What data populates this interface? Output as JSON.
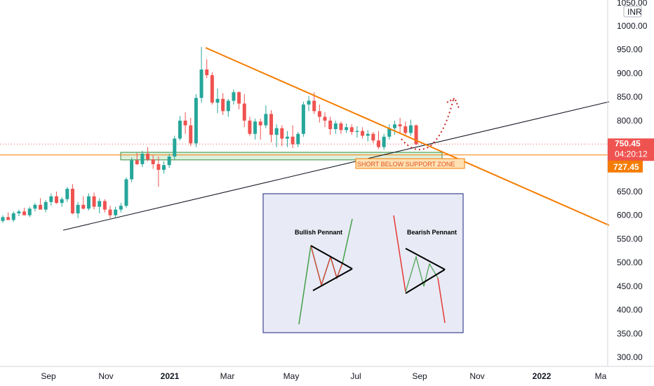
{
  "chart_data": {
    "type": "candlestick",
    "currency": "INR",
    "y_axis": {
      "top_partial_label": "1050.00",
      "ticks": [
        "1000.00",
        "950.00",
        "900.00",
        "850.00",
        "800.00",
        "750.00",
        "700.00",
        "650.00",
        "600.00",
        "550.00",
        "500.00",
        "450.00",
        "400.00",
        "350.00",
        "300.00"
      ],
      "tick_values": [
        1000,
        950,
        900,
        850,
        800,
        750,
        700,
        650,
        600,
        550,
        500,
        450,
        400,
        350,
        300
      ],
      "range": [
        292,
        1058
      ]
    },
    "x_axis": {
      "labels": [
        {
          "text": "Sep",
          "bold": false
        },
        {
          "text": "Nov",
          "bold": false
        },
        {
          "text": "2021",
          "bold": true
        },
        {
          "text": "Mar",
          "bold": false
        },
        {
          "text": "May",
          "bold": false
        },
        {
          "text": "Jul",
          "bold": false
        },
        {
          "text": "Sep",
          "bold": false
        },
        {
          "text": "Nov",
          "bold": false
        },
        {
          "text": "2022",
          "bold": true
        },
        {
          "text": "Ma",
          "bold": false
        }
      ]
    },
    "price_label": {
      "price": "750.45",
      "countdown": "04:20:12",
      "color": "#ef5350"
    },
    "level_label": {
      "price": "727.45",
      "color": "#f57c00"
    },
    "horizontal_level": 727.45,
    "annotation": "SHORT BELOW SUPPORT ZONE",
    "support_zone": [
      717,
      733
    ],
    "colors": {
      "up": "#26a69a",
      "down": "#ef5350",
      "trend": "#f57c00",
      "support": "#131722"
    },
    "candles": [
      [
        588,
        600,
        584,
        596
      ],
      [
        596,
        606,
        590,
        590
      ],
      [
        590,
        608,
        586,
        604
      ],
      [
        604,
        612,
        598,
        608
      ],
      [
        608,
        616,
        600,
        600
      ],
      [
        600,
        618,
        596,
        614
      ],
      [
        614,
        626,
        608,
        622
      ],
      [
        622,
        636,
        612,
        612
      ],
      [
        612,
        632,
        606,
        628
      ],
      [
        628,
        646,
        620,
        640
      ],
      [
        640,
        650,
        624,
        626
      ],
      [
        626,
        638,
        618,
        634
      ],
      [
        634,
        660,
        628,
        656
      ],
      [
        656,
        666,
        602,
        604
      ],
      [
        604,
        628,
        594,
        622
      ],
      [
        622,
        640,
        612,
        614
      ],
      [
        614,
        646,
        610,
        640
      ],
      [
        640,
        648,
        612,
        618
      ],
      [
        618,
        636,
        604,
        630
      ],
      [
        630,
        634,
        606,
        612
      ],
      [
        612,
        620,
        594,
        600
      ],
      [
        600,
        618,
        596,
        612
      ],
      [
        612,
        626,
        606,
        620
      ],
      [
        620,
        680,
        616,
        676
      ],
      [
        676,
        722,
        670,
        716
      ],
      [
        716,
        732,
        706,
        708
      ],
      [
        708,
        736,
        702,
        730
      ],
      [
        730,
        744,
        714,
        718
      ],
      [
        718,
        728,
        698,
        708
      ],
      [
        708,
        724,
        660,
        696
      ],
      [
        696,
        714,
        688,
        706
      ],
      [
        706,
        730,
        700,
        724
      ],
      [
        724,
        768,
        718,
        762
      ],
      [
        762,
        810,
        758,
        800
      ],
      [
        800,
        818,
        772,
        790
      ],
      [
        790,
        806,
        746,
        752
      ],
      [
        752,
        856,
        744,
        848
      ],
      [
        848,
        956,
        838,
        908
      ],
      [
        908,
        930,
        890,
        896
      ],
      [
        896,
        902,
        834,
        838
      ],
      [
        838,
        868,
        816,
        846
      ],
      [
        846,
        858,
        812,
        820
      ],
      [
        820,
        846,
        808,
        842
      ],
      [
        842,
        866,
        834,
        860
      ],
      [
        860,
        862,
        824,
        836
      ],
      [
        836,
        856,
        786,
        800
      ],
      [
        800,
        808,
        768,
        772
      ],
      [
        772,
        804,
        760,
        798
      ],
      [
        798,
        804,
        760,
        790
      ],
      [
        790,
        832,
        784,
        814
      ],
      [
        814,
        822,
        754,
        770
      ],
      [
        770,
        792,
        744,
        784
      ],
      [
        784,
        790,
        746,
        762
      ],
      [
        762,
        778,
        744,
        766
      ],
      [
        766,
        790,
        742,
        750
      ],
      [
        750,
        776,
        744,
        772
      ],
      [
        772,
        840,
        766,
        834
      ],
      [
        834,
        852,
        820,
        842
      ],
      [
        842,
        860,
        814,
        820
      ],
      [
        820,
        834,
        796,
        808
      ],
      [
        808,
        818,
        786,
        800
      ],
      [
        800,
        808,
        770,
        782
      ],
      [
        782,
        800,
        772,
        794
      ],
      [
        794,
        798,
        772,
        780
      ],
      [
        780,
        794,
        774,
        786
      ],
      [
        786,
        792,
        770,
        776
      ],
      [
        776,
        788,
        764,
        778
      ],
      [
        778,
        786,
        762,
        768
      ],
      [
        768,
        780,
        756,
        772
      ],
      [
        772,
        776,
        752,
        758
      ],
      [
        758,
        778,
        740,
        744
      ],
      [
        744,
        772,
        738,
        766
      ],
      [
        766,
        792,
        760,
        784
      ],
      [
        784,
        800,
        770,
        792
      ],
      [
        792,
        806,
        772,
        788
      ],
      [
        788,
        798,
        770,
        774
      ],
      [
        774,
        802,
        768,
        790
      ],
      [
        790,
        792,
        748,
        750
      ]
    ]
  },
  "inset": {
    "bullish_title": "Bullish Pennant",
    "bearish_title": "Bearish Pennant"
  }
}
